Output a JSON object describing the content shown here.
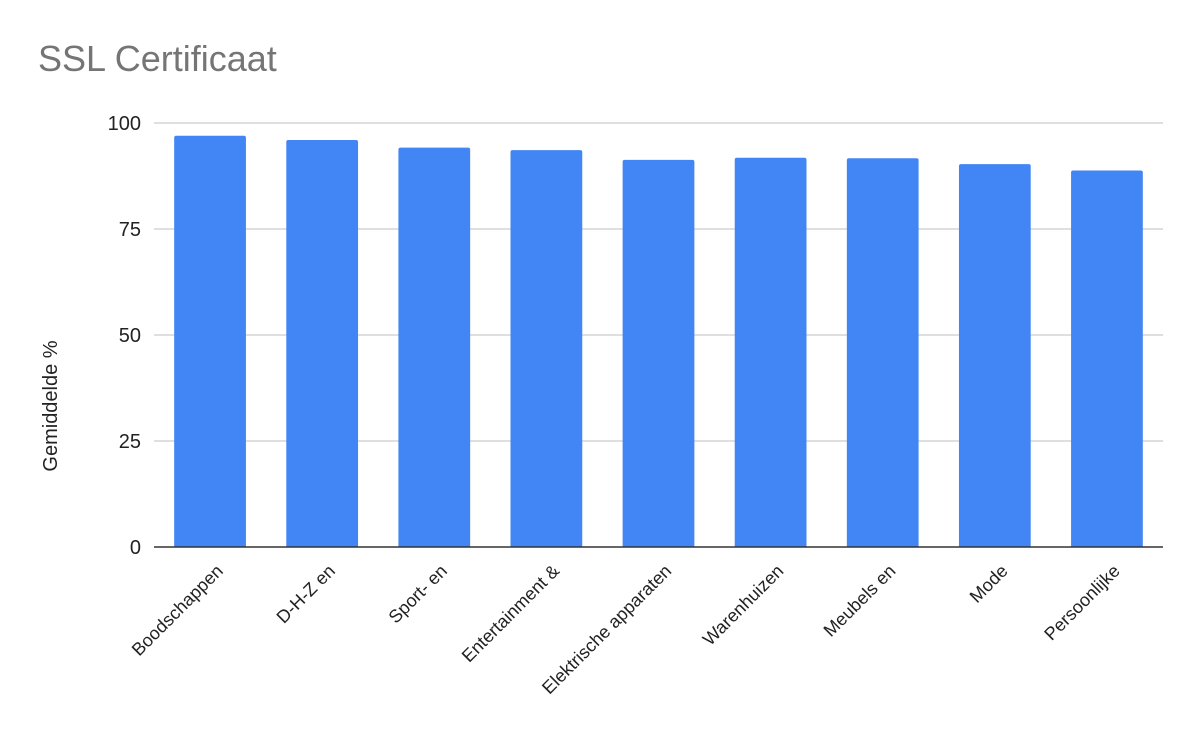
{
  "chart_data": {
    "type": "bar",
    "title": "SSL Certificaat",
    "xlabel": "",
    "ylabel": "Gemiddelde %",
    "ylim": [
      0,
      100
    ],
    "yticks": [
      0,
      25,
      50,
      75,
      100
    ],
    "grid": true,
    "legend": "none",
    "categories": [
      "Boodschappen",
      "D-H-Z en",
      "Sport- en",
      "Entertainment &",
      "Elektrische apparaten",
      "Warenhuizen",
      "Meubels en",
      "Mode",
      "Persoonlijke"
    ],
    "values": [
      97.0,
      96.0,
      94.2,
      93.6,
      91.3,
      91.8,
      91.7,
      90.3,
      88.8
    ],
    "bar_color": "#4285f4"
  }
}
